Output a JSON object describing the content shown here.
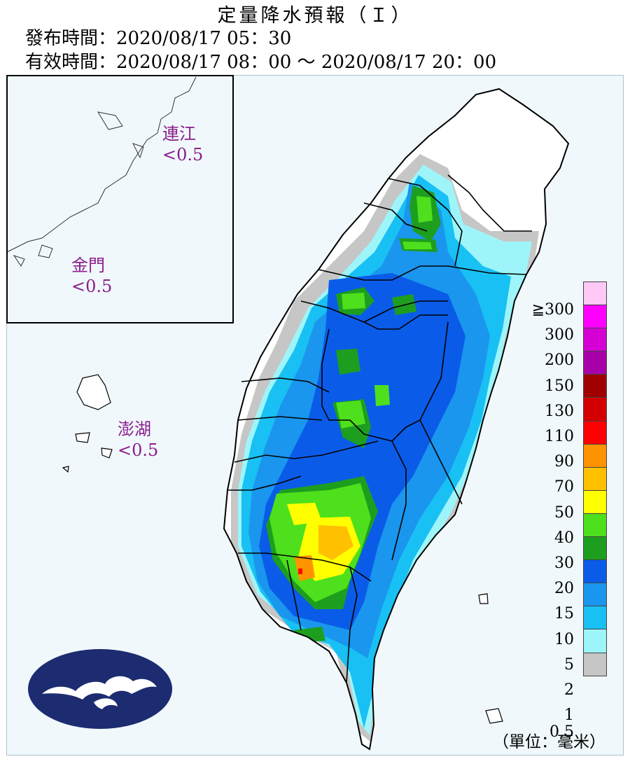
{
  "header": {
    "title": "定量降水預報（Ｉ）",
    "issue_time": "發布時間：2020/08/17 05：30",
    "valid_time": "有效時間：2020/08/17 08：00 ～ 2020/08/17 20：00"
  },
  "islands": [
    {
      "name": "連江",
      "value": "<0.5"
    },
    {
      "name": "金門",
      "value": "<0.5"
    },
    {
      "name": "澎湖",
      "value": "<0.5"
    }
  ],
  "legend": {
    "unit": "（單位：毫米）",
    "levels": [
      {
        "label": "≧300",
        "color": "#ffc8f5"
      },
      {
        "label": "300",
        "color": "#ff00ff"
      },
      {
        "label": "200",
        "color": "#d400d4"
      },
      {
        "label": "150",
        "color": "#a800a8"
      },
      {
        "label": "130",
        "color": "#a00000"
      },
      {
        "label": "110",
        "color": "#d40000"
      },
      {
        "label": "90",
        "color": "#ff0000"
      },
      {
        "label": "70",
        "color": "#ff9400"
      },
      {
        "label": "50",
        "color": "#ffc000"
      },
      {
        "label": "40",
        "color": "#ffff00"
      },
      {
        "label": "30",
        "color": "#4ee01c"
      },
      {
        "label": "20",
        "color": "#1e9e1e"
      },
      {
        "label": "15",
        "color": "#0a5ce8"
      },
      {
        "label": "10",
        "color": "#1a96ee"
      },
      {
        "label": "5",
        "color": "#19c0f3"
      },
      {
        "label": "2",
        "color": "#9df5fa"
      },
      {
        "label": "1",
        "color": "#c6c6c6"
      }
    ],
    "bottom_label": "0.5"
  },
  "colors": {
    "land": "#ffffff",
    "sea": "#f0f8fc",
    "logo_bg": "#1d2c71",
    "logo_fg": "#ffffff",
    "island_label": "#8b1e8b"
  }
}
